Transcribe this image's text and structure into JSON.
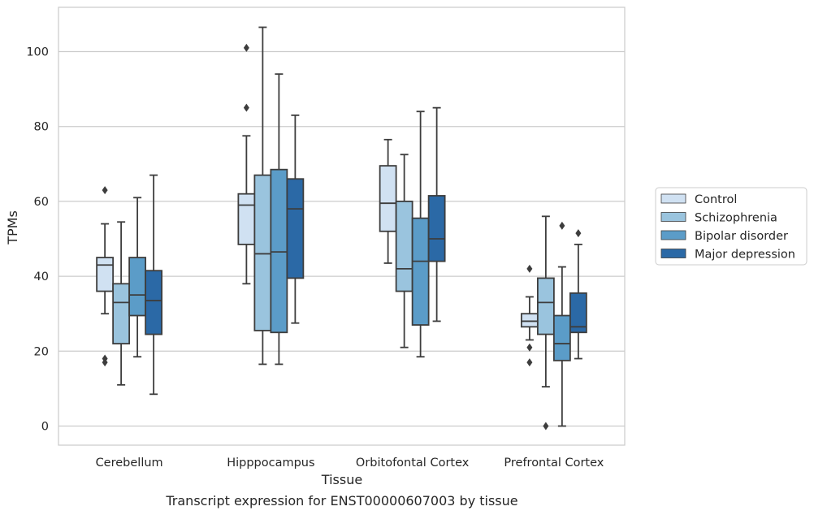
{
  "caption": "Transcript expression for ENST00000607003 by tissue",
  "chart_data": {
    "type": "box",
    "title": "",
    "xlabel": "Tissue",
    "ylabel": "TPMs",
    "ylim": [
      -5,
      112
    ],
    "yticks": [
      0,
      20,
      40,
      60,
      80,
      100
    ],
    "grid": "horizontal",
    "legend_position": "right",
    "categories": [
      "Cerebellum",
      "Hipppocampus",
      "Orbitofontal Cortex",
      "Prefrontal Cortex"
    ],
    "series": [
      {
        "name": "Control",
        "color": "#d0e1f2",
        "boxes": [
          {
            "whisker_low": 30,
            "q1": 36,
            "median": 43,
            "q3": 45,
            "whisker_high": 54,
            "outliers": [
              63,
              18,
              17
            ]
          },
          {
            "whisker_low": 38,
            "q1": 48.5,
            "median": 59,
            "q3": 62,
            "whisker_high": 77.5,
            "outliers": [
              101,
              85
            ]
          },
          {
            "whisker_low": 43.5,
            "q1": 52,
            "median": 59.5,
            "q3": 69.5,
            "whisker_high": 76.5,
            "outliers": []
          },
          {
            "whisker_low": 23,
            "q1": 26.5,
            "median": 28,
            "q3": 30,
            "whisker_high": 34.5,
            "outliers": [
              42,
              21,
              17
            ]
          }
        ]
      },
      {
        "name": "Schizophrenia",
        "color": "#9ac4de",
        "boxes": [
          {
            "whisker_low": 11,
            "q1": 22,
            "median": 33,
            "q3": 38,
            "whisker_high": 54.5,
            "outliers": []
          },
          {
            "whisker_low": 16.5,
            "q1": 25.5,
            "median": 46,
            "q3": 67,
            "whisker_high": 106.5,
            "outliers": []
          },
          {
            "whisker_low": 21,
            "q1": 36,
            "median": 42,
            "q3": 60,
            "whisker_high": 72.5,
            "outliers": []
          },
          {
            "whisker_low": 10.5,
            "q1": 24.5,
            "median": 33,
            "q3": 39.5,
            "whisker_high": 56,
            "outliers": [
              0
            ]
          }
        ]
      },
      {
        "name": "Bipolar disorder",
        "color": "#5b9cc8",
        "boxes": [
          {
            "whisker_low": 18.5,
            "q1": 29.5,
            "median": 35,
            "q3": 45,
            "whisker_high": 61,
            "outliers": []
          },
          {
            "whisker_low": 16.5,
            "q1": 25,
            "median": 46.5,
            "q3": 68.5,
            "whisker_high": 94,
            "outliers": []
          },
          {
            "whisker_low": 18.5,
            "q1": 27,
            "median": 44,
            "q3": 55.5,
            "whisker_high": 84,
            "outliers": []
          },
          {
            "whisker_low": 0,
            "q1": 17.5,
            "median": 22,
            "q3": 29.5,
            "whisker_high": 42.5,
            "outliers": [
              53.5
            ]
          }
        ]
      },
      {
        "name": "Major depression",
        "color": "#2b69a6",
        "boxes": [
          {
            "whisker_low": 8.5,
            "q1": 24.5,
            "median": 33.5,
            "q3": 41.5,
            "whisker_high": 67,
            "outliers": []
          },
          {
            "whisker_low": 27.5,
            "q1": 39.5,
            "median": 58,
            "q3": 66,
            "whisker_high": 83,
            "outliers": []
          },
          {
            "whisker_low": 28,
            "q1": 44,
            "median": 50,
            "q3": 61.5,
            "whisker_high": 85,
            "outliers": []
          },
          {
            "whisker_low": 18,
            "q1": 25,
            "median": 26.5,
            "q3": 35.5,
            "whisker_high": 48.5,
            "outliers": [
              51.5
            ]
          }
        ]
      }
    ]
  }
}
